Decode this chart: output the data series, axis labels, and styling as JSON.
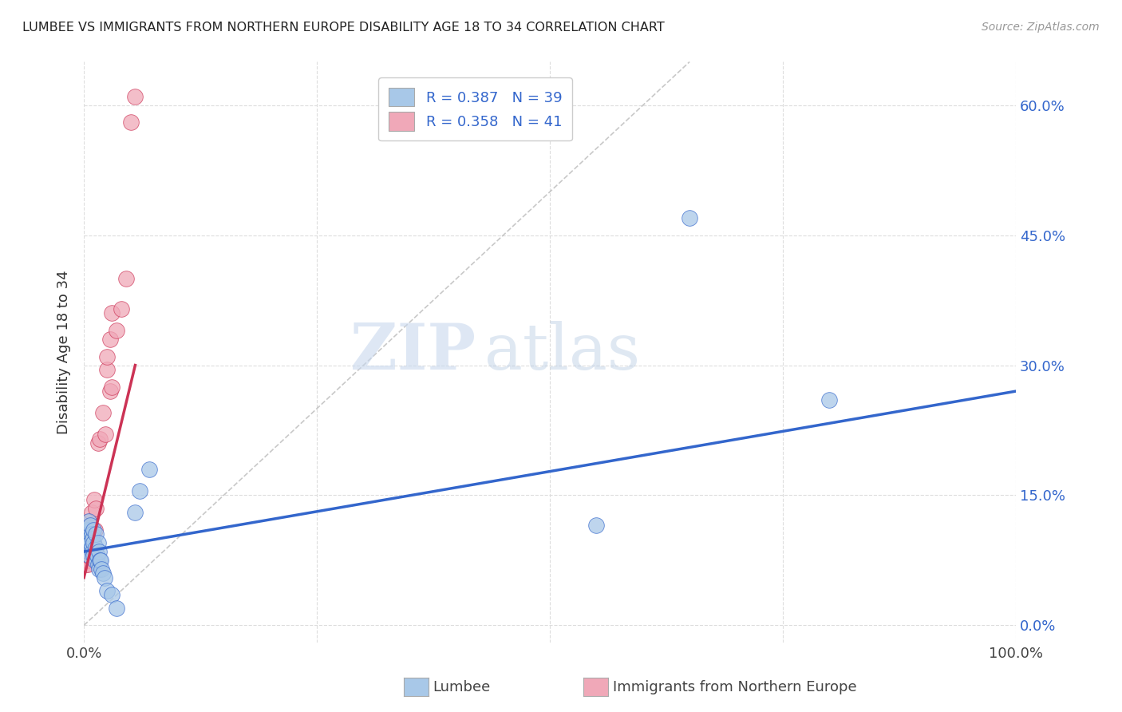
{
  "title": "LUMBEE VS IMMIGRANTS FROM NORTHERN EUROPE DISABILITY AGE 18 TO 34 CORRELATION CHART",
  "source": "Source: ZipAtlas.com",
  "ylabel": "Disability Age 18 to 34",
  "xlim": [
    0,
    1.0
  ],
  "ylim": [
    -0.02,
    0.65
  ],
  "ytick_labels": [
    "0.0%",
    "15.0%",
    "30.0%",
    "45.0%",
    "60.0%"
  ],
  "ytick_vals": [
    0.0,
    0.15,
    0.3,
    0.45,
    0.6
  ],
  "legend_label1": "Lumbee",
  "legend_label2": "Immigrants from Northern Europe",
  "R1": "0.387",
  "N1": "39",
  "R2": "0.358",
  "N2": "41",
  "color_blue": "#a8c8e8",
  "color_pink": "#f0a8b8",
  "line_color_blue": "#3366cc",
  "line_color_pink": "#cc3355",
  "color_diagonal": "#bbbbbb",
  "background_color": "#ffffff",
  "grid_color": "#dddddd",
  "watermark_zip": "ZIP",
  "watermark_atlas": "atlas",
  "lumbee_x": [
    0.002,
    0.003,
    0.004,
    0.004,
    0.005,
    0.005,
    0.006,
    0.006,
    0.007,
    0.007,
    0.008,
    0.008,
    0.009,
    0.009,
    0.01,
    0.01,
    0.01,
    0.012,
    0.013,
    0.013,
    0.014,
    0.015,
    0.015,
    0.016,
    0.016,
    0.017,
    0.018,
    0.019,
    0.02,
    0.022,
    0.025,
    0.03,
    0.035,
    0.055,
    0.06,
    0.07,
    0.55,
    0.65,
    0.8
  ],
  "lumbee_y": [
    0.1,
    0.105,
    0.095,
    0.11,
    0.085,
    0.12,
    0.08,
    0.1,
    0.095,
    0.115,
    0.09,
    0.105,
    0.085,
    0.1,
    0.08,
    0.095,
    0.11,
    0.075,
    0.09,
    0.105,
    0.08,
    0.07,
    0.095,
    0.065,
    0.085,
    0.075,
    0.075,
    0.065,
    0.06,
    0.055,
    0.04,
    0.035,
    0.02,
    0.13,
    0.155,
    0.18,
    0.115,
    0.47,
    0.26
  ],
  "immigrants_x": [
    0.001,
    0.001,
    0.001,
    0.002,
    0.002,
    0.002,
    0.003,
    0.003,
    0.003,
    0.004,
    0.004,
    0.004,
    0.005,
    0.005,
    0.005,
    0.006,
    0.006,
    0.007,
    0.007,
    0.008,
    0.008,
    0.009,
    0.01,
    0.011,
    0.012,
    0.013,
    0.015,
    0.017,
    0.02,
    0.023,
    0.025,
    0.025,
    0.028,
    0.028,
    0.03,
    0.03,
    0.035,
    0.04,
    0.045,
    0.05,
    0.055
  ],
  "immigrants_y": [
    0.075,
    0.085,
    0.095,
    0.07,
    0.08,
    0.09,
    0.075,
    0.085,
    0.095,
    0.07,
    0.085,
    0.1,
    0.08,
    0.09,
    0.105,
    0.105,
    0.12,
    0.095,
    0.115,
    0.1,
    0.13,
    0.11,
    0.095,
    0.145,
    0.11,
    0.135,
    0.21,
    0.215,
    0.245,
    0.22,
    0.295,
    0.31,
    0.27,
    0.33,
    0.275,
    0.36,
    0.34,
    0.365,
    0.4,
    0.58,
    0.61
  ],
  "blue_line_x": [
    0.0,
    1.0
  ],
  "blue_line_y": [
    0.085,
    0.27
  ],
  "pink_line_x": [
    0.0,
    0.055
  ],
  "pink_line_y": [
    0.055,
    0.3
  ]
}
